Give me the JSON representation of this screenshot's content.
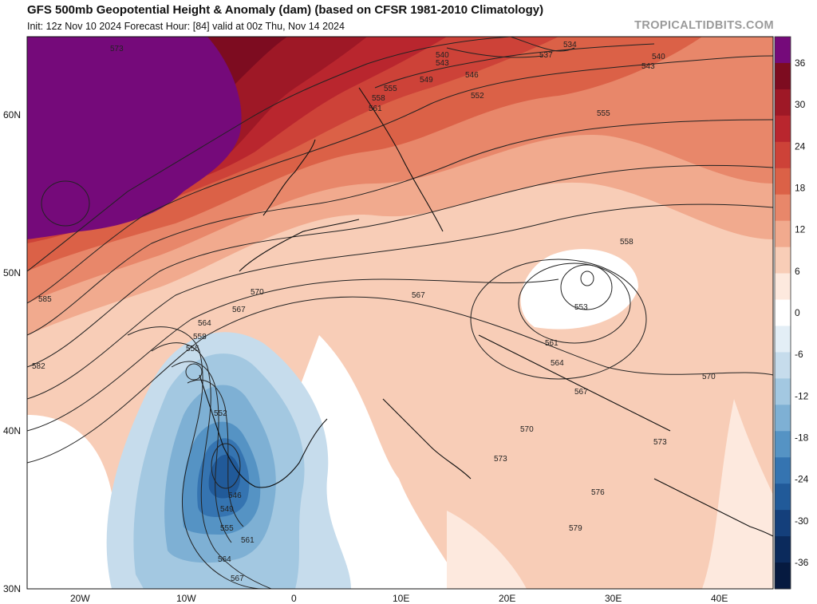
{
  "header": {
    "title": "GFS 500mb Geopotential Height & Anomaly (dam) (based on CFSR 1981-2010 Climatology)",
    "subtitle": "Init: 12z Nov 10 2024   Forecast Hour: [84]   valid at 00z Thu, Nov 14 2024",
    "brand": "TROPICALTIDBITS.COM"
  },
  "axes": {
    "lat_labels": [
      "60N",
      "50N",
      "40N",
      "30N"
    ],
    "lon_labels": [
      "20W",
      "10W",
      "0",
      "10E",
      "20E",
      "30E",
      "40E"
    ]
  },
  "colorbar": {
    "ticks": [
      "36",
      "30",
      "24",
      "18",
      "12",
      "6",
      "0",
      "-6",
      "-12",
      "-18",
      "-24",
      "-30",
      "-36"
    ],
    "colors": [
      "#750a7a",
      "#7d0c20",
      "#9e1826",
      "#b9262e",
      "#cd4238",
      "#db6147",
      "#e8876a",
      "#f1aa8e",
      "#f8cdb7",
      "#fde9de",
      "#ffffff",
      "#e3eef6",
      "#c6dcec",
      "#a3c8e1",
      "#7eb0d4",
      "#5593c4",
      "#3574b1",
      "#215a99",
      "#143f7b",
      "#0b2a5c",
      "#061a40"
    ],
    "accent_colors": {
      "high_anomaly": "#750a7a",
      "low_anomaly": "#0b2a5c"
    }
  },
  "contour_labels": [
    "573",
    "540",
    "543",
    "549",
    "555",
    "558",
    "561",
    "546",
    "537",
    "534",
    "540",
    "543",
    "552",
    "555",
    "558",
    "570",
    "567",
    "585",
    "564",
    "558",
    "555",
    "582",
    "552",
    "546",
    "549",
    "555",
    "561",
    "564",
    "567",
    "567",
    "561",
    "564",
    "567",
    "570",
    "573",
    "573",
    "576",
    "579",
    "570",
    "553"
  ]
}
